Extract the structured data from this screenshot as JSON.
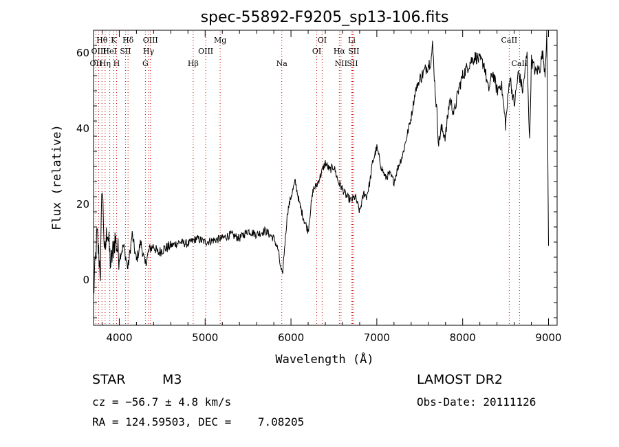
{
  "chart_data": {
    "type": "line",
    "title": "spec-55892-F9205_sp13-106.fits",
    "xlabel": "Wavelength (Å)",
    "ylabel": "Flux (relative)",
    "xlim": [
      3700,
      9100
    ],
    "ylim": [
      -12,
      66
    ],
    "x_ticks": [
      4000,
      5000,
      6000,
      7000,
      8000,
      9000
    ],
    "y_ticks": [
      0,
      20,
      40,
      60
    ],
    "grid": false,
    "line_color": "#000000",
    "marker_color": "#cc0000",
    "series": [
      {
        "x": [
          3700,
          3740,
          3780,
          3800,
          3830,
          3860,
          3900,
          3950,
          4000,
          4050,
          4100,
          4150,
          4200,
          4250,
          4300,
          4350,
          4400,
          4450,
          4500,
          4600,
          4700,
          4800,
          4900,
          5000,
          5100,
          5200,
          5300,
          5400,
          5500,
          5600,
          5700,
          5800,
          5850,
          5880,
          5900,
          5930,
          5960,
          6000,
          6050,
          6100,
          6150,
          6200,
          6230,
          6260,
          6300,
          6350,
          6400,
          6450,
          6500,
          6550,
          6600,
          6650,
          6700,
          6750,
          6800,
          6850,
          6880,
          6920,
          6950,
          7000,
          7050,
          7100,
          7150,
          7200,
          7250,
          7300,
          7350,
          7400,
          7450,
          7500,
          7550,
          7600,
          7630,
          7650,
          7680,
          7700,
          7720,
          7750,
          7800,
          7850,
          7900,
          7950,
          8000,
          8050,
          8100,
          8150,
          8200,
          8250,
          8300,
          8350,
          8400,
          8450,
          8500,
          8550,
          8600,
          8650,
          8700,
          8750,
          8780,
          8800,
          8850,
          8900,
          8930,
          8960,
          8980,
          9000
        ],
        "y": [
          -4,
          12,
          2,
          26,
          6,
          14,
          4,
          11,
          6,
          9,
          3,
          12,
          5,
          10,
          4,
          8,
          9,
          7,
          8,
          9,
          10,
          9.5,
          11,
          10,
          10.5,
          11,
          12,
          11,
          13,
          12,
          13,
          11,
          8,
          3,
          1,
          10,
          18,
          22,
          26,
          20,
          16,
          13,
          19,
          24,
          25,
          28,
          31,
          29,
          30,
          26,
          24,
          22,
          21,
          22,
          18,
          23,
          22,
          26,
          31,
          35,
          30,
          27,
          28,
          26,
          30,
          33,
          38,
          43,
          50,
          53,
          55,
          57,
          58,
          62,
          50,
          44,
          36,
          40,
          38,
          48,
          44,
          50,
          54,
          56,
          58,
          59,
          58,
          57,
          50,
          55,
          50,
          52,
          41,
          54,
          46,
          55,
          50,
          60,
          36,
          58,
          55,
          56,
          60,
          55,
          66,
          9
        ]
      }
    ],
    "lines": [
      {
        "label": "Hθ",
        "x": 3798,
        "row": 1
      },
      {
        "label": "OIII",
        "x": 3760,
        "row": 2
      },
      {
        "label": "OII",
        "x": 3727,
        "row": 3
      },
      {
        "label": "K",
        "x": 3934,
        "row": 1
      },
      {
        "label": "HeI",
        "x": 3889,
        "row": 2
      },
      {
        "label": "Hη",
        "x": 3835,
        "row": 3
      },
      {
        "label": "Hδ",
        "x": 4102,
        "row": 1
      },
      {
        "label": "SII",
        "x": 4072,
        "row": 2
      },
      {
        "label": "H",
        "x": 3969,
        "row": 3
      },
      {
        "label": "OIII",
        "x": 4363,
        "row": 1
      },
      {
        "label": "Hγ",
        "x": 4341,
        "row": 2
      },
      {
        "label": "G",
        "x": 4304,
        "row": 3
      },
      {
        "label": "Mg",
        "x": 5175,
        "row": 1
      },
      {
        "label": "OIII",
        "x": 5007,
        "row": 2
      },
      {
        "label": "Hβ",
        "x": 4861,
        "row": 3
      },
      {
        "label": "Na",
        "x": 5893,
        "row": 3
      },
      {
        "label": "OI",
        "x": 6363,
        "row": 1
      },
      {
        "label": "OI",
        "x": 6300,
        "row": 2
      },
      {
        "label": "Li",
        "x": 6708,
        "row": 1
      },
      {
        "label": "Hα",
        "x": 6563,
        "row": 2
      },
      {
        "label": "SII",
        "x": 6731,
        "row": 2
      },
      {
        "label": "NII",
        "x": 6583,
        "row": 3
      },
      {
        "label": "SII",
        "x": 6716,
        "row": 3
      },
      {
        "label": "CaII",
        "x": 8542,
        "row": 1
      },
      {
        "label": "CaII",
        "x": 8662,
        "row": 3
      }
    ]
  },
  "info": {
    "object_class": "STAR",
    "subclass": "M3",
    "survey": "LAMOST DR2",
    "redshift": "cz = −56.7 ± 4.8 km/s",
    "obs_date": "Obs-Date: 20111126",
    "coords": "RA = 124.59503, DEC =    7.08205"
  }
}
